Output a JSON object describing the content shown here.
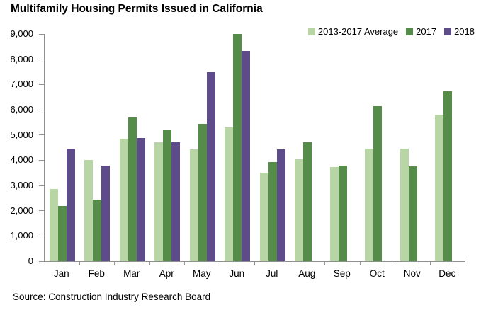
{
  "title": "Multifamily Housing Permits Issued in California",
  "source_note": "Source: Construction Industry Research Board",
  "colors": {
    "series_avg": "#b8d5a5",
    "series_2017": "#568c4a",
    "series_2018": "#5e4b8a",
    "axis": "#8f8f8f",
    "text": "#000000",
    "background": "#ffffff"
  },
  "chart_data": {
    "type": "bar",
    "title": "Multifamily Housing Permits Issued in California",
    "categories": [
      "Jan",
      "Feb",
      "Mar",
      "Apr",
      "May",
      "Jun",
      "Jul",
      "Aug",
      "Sep",
      "Oct",
      "Nov",
      "Dec"
    ],
    "series": [
      {
        "name": "2013-2017 Average",
        "color": "#b8d5a5",
        "values": [
          2850,
          4000,
          4860,
          4710,
          4420,
          5290,
          3500,
          4040,
          3720,
          4460,
          4460,
          5800
        ]
      },
      {
        "name": "2017",
        "color": "#568c4a",
        "values": [
          2200,
          2450,
          5680,
          5200,
          5450,
          9000,
          3940,
          4700,
          3780,
          6150,
          3770,
          6730
        ]
      },
      {
        "name": "2018",
        "color": "#5e4b8a",
        "values": [
          4470,
          3800,
          4880,
          4720,
          7500,
          8340,
          4420,
          null,
          null,
          null,
          null,
          null
        ]
      }
    ],
    "xlabel": "",
    "ylabel": "",
    "ylim": [
      0,
      9000
    ],
    "ytick_step": 1000,
    "ytick_labels": [
      "0",
      "1,000",
      "2,000",
      "3,000",
      "4,000",
      "5,000",
      "6,000",
      "7,000",
      "8,000",
      "9,000"
    ],
    "grid": false,
    "legend_position": "top-right",
    "source": "Source: Construction Industry Research Board"
  }
}
